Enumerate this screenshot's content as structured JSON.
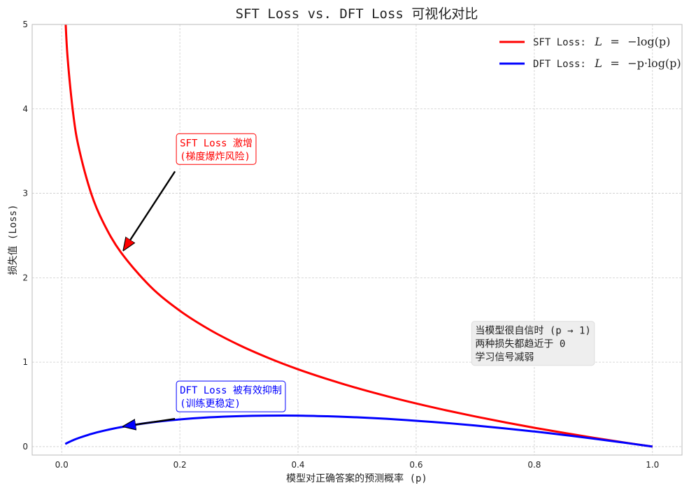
{
  "chart_data": {
    "type": "line",
    "title": "SFT Loss vs. DFT Loss 可视化对比",
    "xlabel": "模型对正确答案的预测概率 (p)",
    "ylabel": "损失值 (Loss)",
    "xlim": [
      -0.05,
      1.05
    ],
    "ylim": [
      -0.1,
      5
    ],
    "xticks": [
      0.0,
      0.2,
      0.4,
      0.6,
      0.8,
      1.0
    ],
    "xtick_labels": [
      "0.0",
      "0.2",
      "0.4",
      "0.6",
      "0.8",
      "1.0"
    ],
    "yticks": [
      0,
      1,
      2,
      3,
      4,
      5
    ],
    "ytick_labels": [
      "0",
      "1",
      "2",
      "3",
      "4",
      "5"
    ],
    "grid": true,
    "legend_position": "top-right",
    "x": [
      0.006,
      0.01,
      0.02,
      0.03,
      0.05,
      0.07,
      0.1,
      0.15,
      0.2,
      0.25,
      0.3,
      0.35,
      0.4,
      0.45,
      0.5,
      0.55,
      0.6,
      0.65,
      0.7,
      0.75,
      0.8,
      0.85,
      0.9,
      0.95,
      1.0
    ],
    "series": [
      {
        "name": "SFT Loss:",
        "formula_lhs": "L",
        "formula_rhs": "−log(p)",
        "color": "#ff0000",
        "values": [
          5.116,
          4.605,
          3.912,
          3.507,
          2.996,
          2.659,
          2.303,
          1.897,
          1.609,
          1.386,
          1.204,
          1.05,
          0.916,
          0.799,
          0.693,
          0.598,
          0.511,
          0.431,
          0.357,
          0.288,
          0.223,
          0.163,
          0.105,
          0.051,
          0.0
        ]
      },
      {
        "name": "DFT Loss:",
        "formula_lhs": "L",
        "formula_rhs": "−p·log(p)",
        "color": "#0000ff",
        "values": [
          0.031,
          0.046,
          0.078,
          0.105,
          0.15,
          0.186,
          0.23,
          0.285,
          0.322,
          0.347,
          0.361,
          0.367,
          0.367,
          0.359,
          0.347,
          0.329,
          0.306,
          0.28,
          0.25,
          0.216,
          0.179,
          0.138,
          0.095,
          0.049,
          0.0
        ]
      }
    ],
    "annotations": [
      {
        "lines": [
          "SFT Loss 激增",
          "(梯度爆炸风险)"
        ],
        "color": "#ff0000",
        "text_at": [
          0.2,
          3.4
        ],
        "arrow_to": [
          0.105,
          2.33
        ]
      },
      {
        "lines": [
          "DFT Loss 被有效抑制",
          "(训练更稳定)"
        ],
        "color": "#0000ff",
        "text_at": [
          0.2,
          0.47
        ],
        "arrow_to": [
          0.105,
          0.24
        ]
      },
      {
        "lines": [
          "当模型很自信时 (p → 1)",
          "两种损失都趋近于 0",
          "学习信号减弱"
        ],
        "color": "#222222",
        "text_at": [
          0.7,
          1.02
        ]
      }
    ]
  }
}
